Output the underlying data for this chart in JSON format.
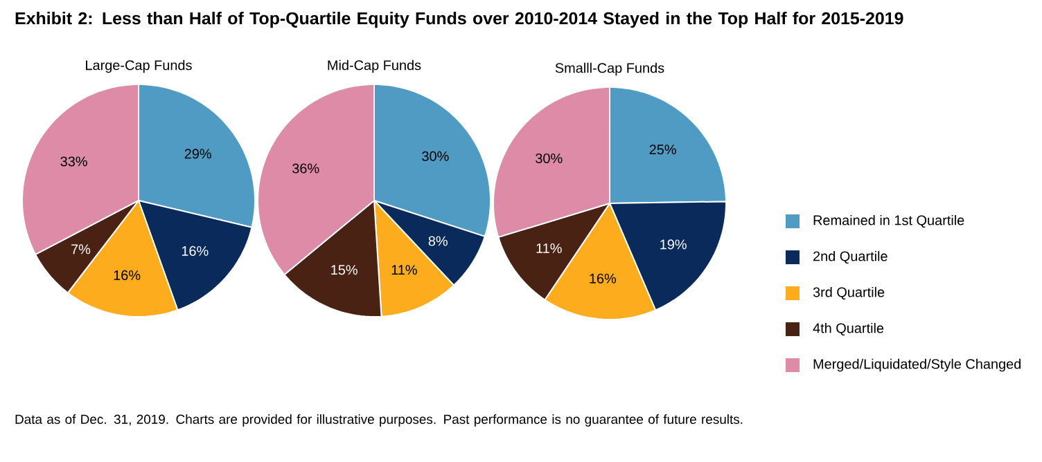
{
  "chart_data": [
    {
      "type": "other",
      "title": "Exhibit 2: Less than Half of Top-Quartile Equity Funds over 2010-2014 Stayed in the Top Half for 2015-2019",
      "annotations": [
        "Data as of Dec. 31, 2019. Charts are provided for illustrative purposes. Past performance is no guarantee of future results."
      ]
    },
    {
      "type": "pie",
      "title": "Large-Cap Funds",
      "categories": [
        null,
        null,
        null,
        null,
        null
      ],
      "values": [
        29,
        16,
        16,
        7,
        33
      ],
      "value_labels": [
        "29%",
        "16%",
        "16%",
        "7%",
        "33%"
      ],
      "colors": [
        "#4f9bc4",
        "#0b2a5c",
        "#fcac1c",
        "#4a2214",
        "#dd8ba7"
      ]
    },
    {
      "type": "pie",
      "title": "Mid-Cap Funds",
      "categories": [
        null,
        null,
        null,
        null,
        null
      ],
      "values": [
        30,
        8,
        11,
        15,
        36
      ],
      "value_labels": [
        "30%",
        "8%",
        "11%",
        "15%",
        "36%"
      ],
      "colors": [
        "#4f9bc4",
        "#0b2a5c",
        "#fcac1c",
        "#4a2214",
        "#dd8ba7"
      ]
    },
    {
      "type": "pie",
      "title": "Smalll-Cap Funds",
      "categories": [
        "Remained in 1st Quartile",
        "2nd Quartile",
        "3rd Quartile",
        "4th Quartile",
        "Merged/Liquidated/Style Changed"
      ],
      "values": [
        25,
        19,
        16,
        11,
        30
      ],
      "value_labels": [
        "25%",
        "19%",
        "16%",
        "11%",
        "30%"
      ],
      "colors": [
        "#4f9bc4",
        "#0b2a5c",
        "#fcac1c",
        "#4a2214",
        "#dd8ba7"
      ],
      "legend": "right"
    }
  ]
}
